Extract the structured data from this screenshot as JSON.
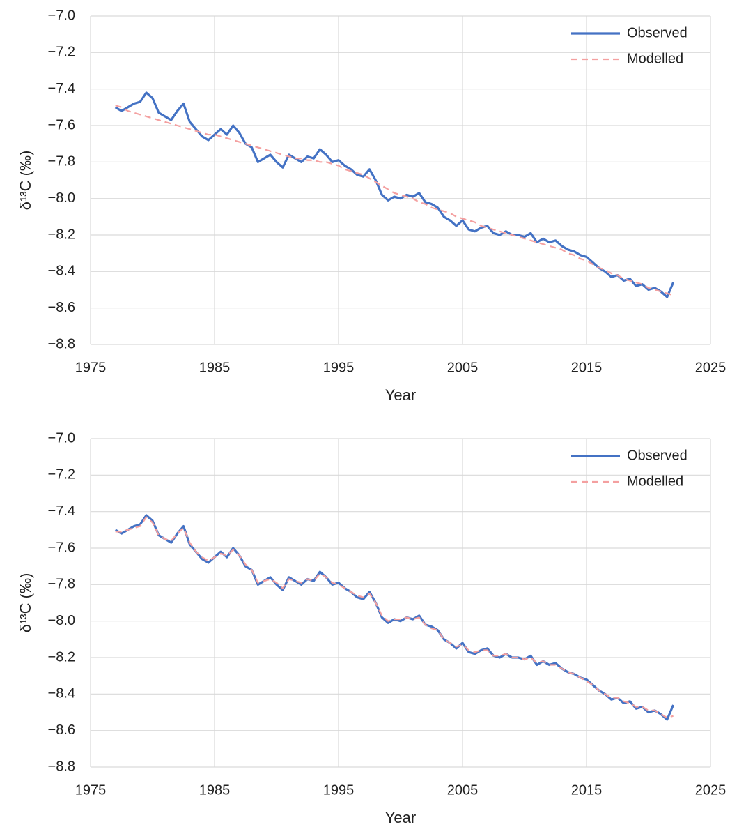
{
  "chart_data": [
    {
      "type": "line",
      "x_label": "Year",
      "y_label": "δ¹³C (‰)",
      "x": [
        1977,
        1977.5,
        1978,
        1978.5,
        1979,
        1979.5,
        1980,
        1980.5,
        1981,
        1981.5,
        1982,
        1982.5,
        1983,
        1983.5,
        1984,
        1984.5,
        1985,
        1985.5,
        1986,
        1986.5,
        1987,
        1987.5,
        1988,
        1988.5,
        1989,
        1989.5,
        1990,
        1990.5,
        1991,
        1991.5,
        1992,
        1992.5,
        1993,
        1993.5,
        1994,
        1994.5,
        1995,
        1995.5,
        1996,
        1996.5,
        1997,
        1997.5,
        1998,
        1998.5,
        1999,
        1999.5,
        2000,
        2000.5,
        2001,
        2001.5,
        2002,
        2002.5,
        2003,
        2003.5,
        2004,
        2004.5,
        2005,
        2005.5,
        2006,
        2006.5,
        2007,
        2007.5,
        2008,
        2008.5,
        2009,
        2009.5,
        2010,
        2010.5,
        2011,
        2011.5,
        2012,
        2012.5,
        2013,
        2013.5,
        2014,
        2014.5,
        2015,
        2015.5,
        2016,
        2016.5,
        2017,
        2017.5,
        2018,
        2018.5,
        2019,
        2019.5,
        2020,
        2020.5,
        2021,
        2021.5,
        2022
      ],
      "series": [
        {
          "name": "Observed",
          "color": "#4472c4",
          "dash": false,
          "values": [
            -7.5,
            -7.52,
            -7.5,
            -7.48,
            -7.47,
            -7.42,
            -7.45,
            -7.53,
            -7.55,
            -7.57,
            -7.52,
            -7.48,
            -7.58,
            -7.62,
            -7.66,
            -7.68,
            -7.65,
            -7.62,
            -7.65,
            -7.6,
            -7.64,
            -7.7,
            -7.72,
            -7.8,
            -7.78,
            -7.76,
            -7.8,
            -7.83,
            -7.76,
            -7.78,
            -7.8,
            -7.77,
            -7.78,
            -7.73,
            -7.76,
            -7.8,
            -7.79,
            -7.82,
            -7.84,
            -7.87,
            -7.88,
            -7.84,
            -7.9,
            -7.98,
            -8.01,
            -7.99,
            -8.0,
            -7.98,
            -7.99,
            -7.97,
            -8.02,
            -8.03,
            -8.05,
            -8.1,
            -8.12,
            -8.15,
            -8.12,
            -8.17,
            -8.18,
            -8.16,
            -8.15,
            -8.19,
            -8.2,
            -8.18,
            -8.2,
            -8.2,
            -8.21,
            -8.19,
            -8.24,
            -8.22,
            -8.24,
            -8.23,
            -8.26,
            -8.28,
            -8.29,
            -8.31,
            -8.32,
            -8.35,
            -8.38,
            -8.4,
            -8.43,
            -8.42,
            -8.45,
            -8.44,
            -8.48,
            -8.47,
            -8.5,
            -8.49,
            -8.51,
            -8.54,
            -8.46
          ]
        },
        {
          "name": "Modelled",
          "color": "#f4a0a0",
          "dash": true,
          "values": [
            -7.49,
            -7.5,
            -7.52,
            -7.53,
            -7.54,
            -7.55,
            -7.56,
            -7.57,
            -7.58,
            -7.59,
            -7.6,
            -7.61,
            -7.62,
            -7.63,
            -7.64,
            -7.65,
            -7.65,
            -7.66,
            -7.67,
            -7.68,
            -7.69,
            -7.7,
            -7.71,
            -7.72,
            -7.73,
            -7.74,
            -7.75,
            -7.76,
            -7.77,
            -7.78,
            -7.78,
            -7.79,
            -7.79,
            -7.8,
            -7.8,
            -7.81,
            -7.82,
            -7.84,
            -7.85,
            -7.86,
            -7.87,
            -7.89,
            -7.91,
            -7.93,
            -7.95,
            -7.97,
            -7.98,
            -7.99,
            -8.0,
            -8.02,
            -8.03,
            -8.05,
            -8.06,
            -8.07,
            -8.08,
            -8.1,
            -8.11,
            -8.12,
            -8.13,
            -8.15,
            -8.16,
            -8.17,
            -8.18,
            -8.19,
            -8.2,
            -8.21,
            -8.22,
            -8.23,
            -8.24,
            -8.25,
            -8.26,
            -8.27,
            -8.28,
            -8.3,
            -8.31,
            -8.33,
            -8.34,
            -8.36,
            -8.38,
            -8.39,
            -8.41,
            -8.42,
            -8.44,
            -8.45,
            -8.46,
            -8.47,
            -8.49,
            -8.5,
            -8.51,
            -8.52,
            -8.53
          ]
        }
      ],
      "xlim": [
        1975,
        2025
      ],
      "xticks": [
        1975,
        1985,
        1995,
        2005,
        2015,
        2025
      ],
      "ylim": [
        -8.8,
        -7.0
      ],
      "yticks": [
        {
          "value": -8.8,
          "label": "−8.8"
        },
        {
          "value": -8.6,
          "label": "−8.6"
        },
        {
          "value": -8.4,
          "label": "−8.4"
        },
        {
          "value": -8.2,
          "label": "−8.2"
        },
        {
          "value": -8.0,
          "label": "−8.0"
        },
        {
          "value": -7.8,
          "label": "−7.8"
        },
        {
          "value": -7.6,
          "label": "−7.6"
        },
        {
          "value": -7.4,
          "label": "−7.4"
        },
        {
          "value": -7.2,
          "label": "−7.2"
        },
        {
          "value": -7.0,
          "label": "−7.0"
        }
      ],
      "grid": true,
      "legend": "upper right"
    },
    {
      "type": "line",
      "x_label": "Year",
      "y_label": "δ¹³C (‰)",
      "x": [
        1977,
        1977.5,
        1978,
        1978.5,
        1979,
        1979.5,
        1980,
        1980.5,
        1981,
        1981.5,
        1982,
        1982.5,
        1983,
        1983.5,
        1984,
        1984.5,
        1985,
        1985.5,
        1986,
        1986.5,
        1987,
        1987.5,
        1988,
        1988.5,
        1989,
        1989.5,
        1990,
        1990.5,
        1991,
        1991.5,
        1992,
        1992.5,
        1993,
        1993.5,
        1994,
        1994.5,
        1995,
        1995.5,
        1996,
        1996.5,
        1997,
        1997.5,
        1998,
        1998.5,
        1999,
        1999.5,
        2000,
        2000.5,
        2001,
        2001.5,
        2002,
        2002.5,
        2003,
        2003.5,
        2004,
        2004.5,
        2005,
        2005.5,
        2006,
        2006.5,
        2007,
        2007.5,
        2008,
        2008.5,
        2009,
        2009.5,
        2010,
        2010.5,
        2011,
        2011.5,
        2012,
        2012.5,
        2013,
        2013.5,
        2014,
        2014.5,
        2015,
        2015.5,
        2016,
        2016.5,
        2017,
        2017.5,
        2018,
        2018.5,
        2019,
        2019.5,
        2020,
        2020.5,
        2021,
        2021.5,
        2022
      ],
      "series": [
        {
          "name": "Observed",
          "color": "#4472c4",
          "dash": false,
          "values": [
            -7.5,
            -7.52,
            -7.5,
            -7.48,
            -7.47,
            -7.42,
            -7.45,
            -7.53,
            -7.55,
            -7.57,
            -7.52,
            -7.48,
            -7.58,
            -7.62,
            -7.66,
            -7.68,
            -7.65,
            -7.62,
            -7.65,
            -7.6,
            -7.64,
            -7.7,
            -7.72,
            -7.8,
            -7.78,
            -7.76,
            -7.8,
            -7.83,
            -7.76,
            -7.78,
            -7.8,
            -7.77,
            -7.78,
            -7.73,
            -7.76,
            -7.8,
            -7.79,
            -7.82,
            -7.84,
            -7.87,
            -7.88,
            -7.84,
            -7.9,
            -7.98,
            -8.01,
            -7.99,
            -8.0,
            -7.98,
            -7.99,
            -7.97,
            -8.02,
            -8.03,
            -8.05,
            -8.1,
            -8.12,
            -8.15,
            -8.12,
            -8.17,
            -8.18,
            -8.16,
            -8.15,
            -8.19,
            -8.2,
            -8.18,
            -8.2,
            -8.2,
            -8.21,
            -8.19,
            -8.24,
            -8.22,
            -8.24,
            -8.23,
            -8.26,
            -8.28,
            -8.29,
            -8.31,
            -8.32,
            -8.35,
            -8.38,
            -8.4,
            -8.43,
            -8.42,
            -8.45,
            -8.44,
            -8.48,
            -8.47,
            -8.5,
            -8.49,
            -8.51,
            -8.54,
            -8.46
          ]
        },
        {
          "name": "Modelled",
          "color": "#f4a0a0",
          "dash": true,
          "values": [
            -7.51,
            -7.51,
            -7.5,
            -7.49,
            -7.48,
            -7.43,
            -7.46,
            -7.53,
            -7.55,
            -7.56,
            -7.52,
            -7.49,
            -7.57,
            -7.62,
            -7.65,
            -7.67,
            -7.65,
            -7.63,
            -7.64,
            -7.61,
            -7.64,
            -7.69,
            -7.72,
            -7.79,
            -7.78,
            -7.77,
            -7.79,
            -7.82,
            -7.77,
            -7.78,
            -7.79,
            -7.77,
            -7.78,
            -7.74,
            -7.76,
            -7.79,
            -7.8,
            -7.82,
            -7.84,
            -7.86,
            -7.87,
            -7.85,
            -7.9,
            -7.97,
            -8.0,
            -7.99,
            -7.99,
            -7.98,
            -7.99,
            -7.98,
            -8.02,
            -8.04,
            -8.05,
            -8.1,
            -8.12,
            -8.14,
            -8.13,
            -8.16,
            -8.17,
            -8.16,
            -8.16,
            -8.19,
            -8.19,
            -8.18,
            -8.2,
            -8.2,
            -8.21,
            -8.2,
            -8.23,
            -8.22,
            -8.24,
            -8.24,
            -8.26,
            -8.28,
            -8.29,
            -8.31,
            -8.33,
            -8.35,
            -8.38,
            -8.4,
            -8.42,
            -8.42,
            -8.44,
            -8.45,
            -8.47,
            -8.47,
            -8.49,
            -8.49,
            -8.51,
            -8.53,
            -8.52
          ]
        }
      ],
      "xlim": [
        1975,
        2025
      ],
      "xticks": [
        1975,
        1985,
        1995,
        2005,
        2015,
        2025
      ],
      "ylim": [
        -8.8,
        -7.0
      ],
      "yticks": [
        {
          "value": -8.8,
          "label": "−8.8"
        },
        {
          "value": -8.6,
          "label": "−8.6"
        },
        {
          "value": -8.4,
          "label": "−8.4"
        },
        {
          "value": -8.2,
          "label": "−8.2"
        },
        {
          "value": -8.0,
          "label": "−8.0"
        },
        {
          "value": -7.8,
          "label": "−7.8"
        },
        {
          "value": -7.6,
          "label": "−7.6"
        },
        {
          "value": -7.4,
          "label": "−7.4"
        },
        {
          "value": -7.2,
          "label": "−7.2"
        },
        {
          "value": -7.0,
          "label": "−7.0"
        }
      ],
      "grid": true,
      "legend": "upper right"
    }
  ]
}
